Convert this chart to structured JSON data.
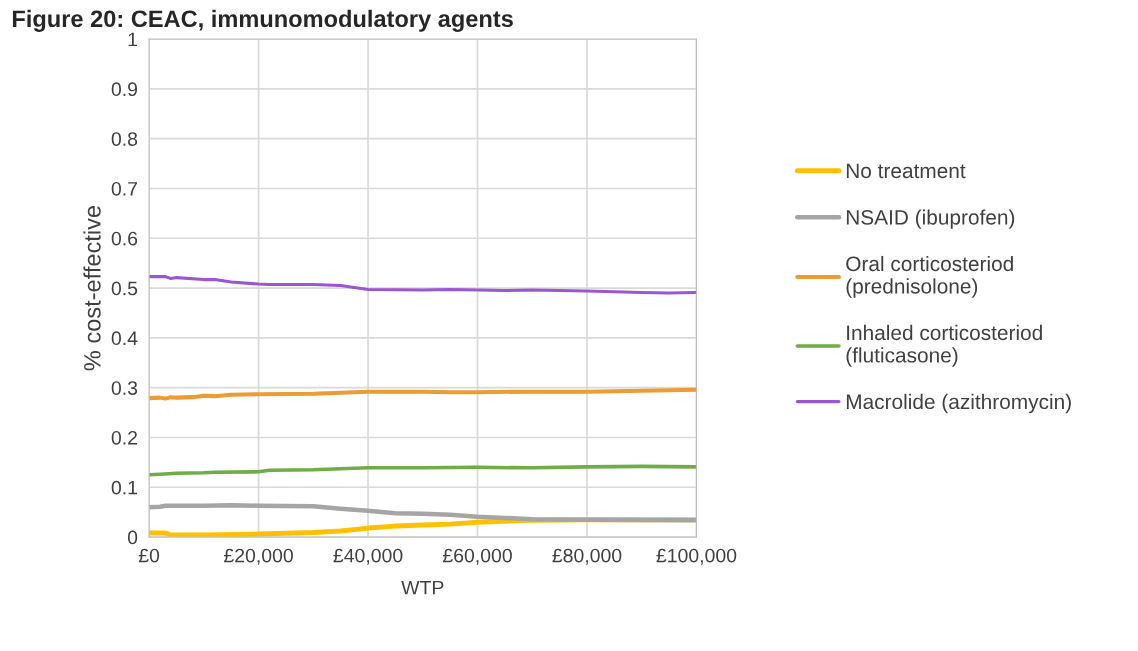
{
  "chart_data": {
    "type": "line",
    "title": "Figure 20: CEAC, immunomodulatory agents",
    "xlabel": "WTP",
    "ylabel": "% cost-effective",
    "xlim": [
      0,
      100000
    ],
    "ylim": [
      0,
      1
    ],
    "xticks": [
      {
        "value": 0,
        "label": "£0"
      },
      {
        "value": 20000,
        "label": "£20,000"
      },
      {
        "value": 40000,
        "label": "£40,000"
      },
      {
        "value": 60000,
        "label": "£60,000"
      },
      {
        "value": 80000,
        "label": "£80,000"
      },
      {
        "value": 100000,
        "label": "£100,000"
      }
    ],
    "yticks": [
      0,
      0.1,
      0.2,
      0.3,
      0.4,
      0.5,
      0.6,
      0.7,
      0.8,
      0.9,
      1
    ],
    "grid": true,
    "legend": "right",
    "marker": "none",
    "line_style": "solid",
    "series": [
      {
        "name": "No treatment",
        "color": "#ffc000",
        "x": [
          0,
          3000,
          4000,
          10000,
          20000,
          30000,
          35000,
          40000,
          45000,
          50000,
          55000,
          60000,
          70000,
          80000,
          100000
        ],
        "values": [
          0.008,
          0.008,
          0.004,
          0.004,
          0.006,
          0.009,
          0.012,
          0.018,
          0.022,
          0.024,
          0.026,
          0.03,
          0.034,
          0.035,
          0.035
        ]
      },
      {
        "name": "NSAID (ibuprofen)",
        "color": "#a5a5a5",
        "x": [
          0,
          2000,
          3000,
          10000,
          15000,
          20000,
          30000,
          35000,
          40000,
          45000,
          50000,
          55000,
          60000,
          70000,
          80000,
          100000
        ],
        "values": [
          0.06,
          0.061,
          0.063,
          0.063,
          0.064,
          0.063,
          0.062,
          0.057,
          0.053,
          0.048,
          0.047,
          0.045,
          0.041,
          0.036,
          0.035,
          0.034
        ]
      },
      {
        "name": "Oral corticosteriod\n(prednisolone)",
        "color": "#ed9b33",
        "x": [
          0,
          2000,
          3000,
          4000,
          5000,
          8000,
          10000,
          12000,
          15000,
          20000,
          30000,
          40000,
          50000,
          55000,
          60000,
          70000,
          80000,
          90000,
          100000
        ],
        "values": [
          0.279,
          0.28,
          0.278,
          0.281,
          0.28,
          0.281,
          0.284,
          0.283,
          0.286,
          0.287,
          0.288,
          0.292,
          0.292,
          0.291,
          0.291,
          0.292,
          0.292,
          0.294,
          0.296
        ]
      },
      {
        "name": "Inhaled corticosteriod\n(fluticasone)",
        "color": "#70ad47",
        "x": [
          0,
          2000,
          5000,
          10000,
          12000,
          20000,
          22000,
          30000,
          40000,
          50000,
          60000,
          70000,
          80000,
          90000,
          100000
        ],
        "values": [
          0.125,
          0.126,
          0.128,
          0.129,
          0.13,
          0.131,
          0.134,
          0.135,
          0.139,
          0.139,
          0.14,
          0.139,
          0.141,
          0.142,
          0.141
        ]
      },
      {
        "name": "Macrolide (azithromycin)",
        "color": "#9b57d3",
        "x": [
          0,
          3000,
          4000,
          5000,
          10000,
          12000,
          15000,
          20000,
          22000,
          25000,
          30000,
          35000,
          40000,
          50000,
          55000,
          65000,
          70000,
          80000,
          90000,
          95000,
          100000
        ],
        "values": [
          0.523,
          0.523,
          0.519,
          0.521,
          0.517,
          0.517,
          0.512,
          0.508,
          0.507,
          0.507,
          0.507,
          0.505,
          0.497,
          0.496,
          0.497,
          0.495,
          0.496,
          0.494,
          0.491,
          0.49,
          0.491
        ]
      }
    ]
  }
}
